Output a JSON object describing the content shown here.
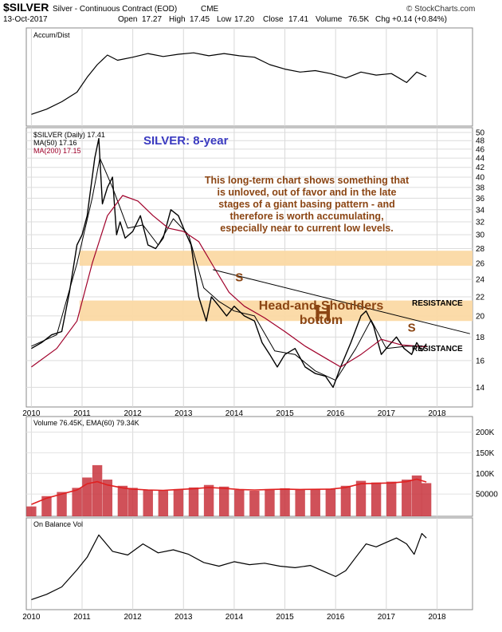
{
  "header": {
    "symbol": "$SILVER",
    "name": "Silver - Continuous Contract (EOD)",
    "exchange": "CME",
    "date": "13-Oct-2017",
    "open_label": "Open",
    "open": "17.27",
    "high_label": "High",
    "high": "17.45",
    "low_label": "Low",
    "low": "17.20",
    "close_label": "Close",
    "close": "17.41",
    "volume_label": "Volume",
    "volume": "76.5K",
    "chg_label": "Chg",
    "chg": "+0.14 (+0.84%)",
    "source": "© StockCharts.com"
  },
  "colors": {
    "price": "#000000",
    "ma50": "#000000",
    "ma200": "#a0002a",
    "volume_bar": "#c8323c",
    "volume_ema": "#e02020",
    "resistance_band": "#fbd9a4",
    "annotation": "#8b4513",
    "title": "#3a3ac0"
  },
  "chart_data": [
    {
      "type": "line",
      "panel": "accum-dist",
      "title": "Accum/Dist",
      "x": [
        2010.0,
        2010.3,
        2010.6,
        2010.9,
        2011.1,
        2011.3,
        2011.5,
        2011.7,
        2012.0,
        2012.3,
        2012.6,
        2012.9,
        2013.2,
        2013.5,
        2013.8,
        2014.1,
        2014.4,
        2014.7,
        2015.0,
        2015.3,
        2015.6,
        2015.9,
        2016.2,
        2016.5,
        2016.8,
        2017.1,
        2017.4,
        2017.6,
        2017.79
      ],
      "values": [
        0.05,
        0.12,
        0.22,
        0.35,
        0.55,
        0.72,
        0.85,
        0.78,
        0.82,
        0.87,
        0.83,
        0.86,
        0.88,
        0.84,
        0.87,
        0.84,
        0.82,
        0.72,
        0.66,
        0.62,
        0.64,
        0.6,
        0.54,
        0.62,
        0.58,
        0.6,
        0.48,
        0.62,
        0.56
      ]
    },
    {
      "type": "line",
      "panel": "price",
      "title": "SILVER: 8-year",
      "legend": [
        "$SILVER (Daily) 17.41",
        "MA(50) 17.16",
        "MA(200) 17.15"
      ],
      "ylim": [
        13,
        50
      ],
      "y_ticks": [
        14,
        16,
        18,
        20,
        22,
        24,
        26,
        28,
        30,
        32,
        34,
        36,
        38,
        40,
        42,
        44,
        46,
        48,
        50
      ],
      "x_ticks": [
        "2010",
        "2011",
        "2012",
        "2013",
        "2014",
        "2015",
        "2016",
        "2017",
        "2018"
      ],
      "series": [
        {
          "name": "$SILVER (Daily)",
          "x": [
            2010.0,
            2010.2,
            2010.4,
            2010.6,
            2010.75,
            2010.9,
            2011.0,
            2011.1,
            2011.25,
            2011.33,
            2011.4,
            2011.5,
            2011.6,
            2011.68,
            2011.75,
            2011.85,
            2012.0,
            2012.15,
            2012.3,
            2012.45,
            2012.6,
            2012.75,
            2012.9,
            2013.0,
            2013.15,
            2013.3,
            2013.45,
            2013.55,
            2013.7,
            2013.85,
            2014.0,
            2014.2,
            2014.4,
            2014.55,
            2014.7,
            2014.85,
            2015.0,
            2015.2,
            2015.4,
            2015.6,
            2015.8,
            2015.95,
            2016.1,
            2016.3,
            2016.5,
            2016.6,
            2016.75,
            2016.9,
            2017.0,
            2017.2,
            2017.35,
            2017.5,
            2017.6,
            2017.7,
            2017.79
          ],
          "values": [
            17.0,
            17.5,
            18.2,
            18.5,
            22.5,
            28.5,
            30.0,
            33.0,
            44.0,
            48.5,
            35.0,
            38.0,
            40.0,
            30.0,
            32.0,
            29.5,
            30.5,
            33.0,
            28.5,
            28.0,
            29.5,
            34.0,
            33.0,
            31.0,
            28.5,
            22.0,
            19.5,
            22.0,
            21.0,
            20.0,
            21.0,
            20.0,
            19.5,
            17.5,
            16.5,
            15.5,
            16.5,
            17.0,
            15.5,
            15.0,
            14.8,
            14.0,
            15.5,
            17.5,
            20.0,
            20.5,
            19.0,
            16.5,
            17.0,
            18.0,
            17.0,
            16.5,
            17.5,
            16.8,
            17.41
          ]
        },
        {
          "name": "MA(50)",
          "x": [
            2010.0,
            2010.5,
            2010.9,
            2011.2,
            2011.35,
            2011.6,
            2011.9,
            2012.2,
            2012.5,
            2012.8,
            2013.1,
            2013.4,
            2013.7,
            2014.0,
            2014.4,
            2014.8,
            2015.2,
            2015.6,
            2016.0,
            2016.4,
            2016.7,
            2017.0,
            2017.4,
            2017.79
          ],
          "values": [
            17.2,
            18.2,
            26.0,
            36.0,
            44.0,
            38.0,
            31.0,
            31.5,
            28.5,
            32.5,
            30.0,
            23.0,
            21.5,
            20.5,
            20.0,
            16.8,
            16.5,
            15.2,
            14.5,
            17.0,
            19.6,
            17.0,
            17.2,
            17.16
          ]
        },
        {
          "name": "MA(200)",
          "x": [
            2010.0,
            2010.5,
            2010.9,
            2011.2,
            2011.5,
            2011.8,
            2012.1,
            2012.4,
            2012.7,
            2013.0,
            2013.3,
            2013.6,
            2013.9,
            2014.2,
            2014.6,
            2015.0,
            2015.4,
            2015.8,
            2016.1,
            2016.5,
            2016.9,
            2017.3,
            2017.79
          ],
          "values": [
            15.5,
            17.0,
            19.5,
            26.0,
            33.0,
            36.5,
            35.5,
            33.0,
            31.0,
            30.5,
            29.0,
            25.5,
            22.5,
            21.0,
            19.8,
            18.5,
            17.2,
            16.2,
            15.5,
            16.5,
            17.8,
            17.3,
            17.15
          ]
        }
      ],
      "annotations": [
        {
          "text": "This long-term chart shows something that is unloved, out of favor and in the late stages of a giant basing pattern - and therefore is worth accumulating, especially near to current low levels."
        },
        {
          "text": "Head-and-Shoulders bottom"
        },
        {
          "text": "RESISTANCE",
          "y": 26.5
        },
        {
          "text": "RESISTANCE",
          "y": 20.5
        },
        {
          "text": "S",
          "x": 2014.1,
          "y": 23.8
        },
        {
          "text": "H",
          "x": 2015.75,
          "y": 19.5
        },
        {
          "text": "S",
          "x": 2017.5,
          "y": 18.5
        }
      ],
      "bands": [
        {
          "label": "RESISTANCE",
          "from": 25.7,
          "to": 27.7
        },
        {
          "label": "RESISTANCE",
          "from": 19.5,
          "to": 21.6
        }
      ],
      "trendline": {
        "x": [
          2013.58,
          2018.65
        ],
        "y": [
          25.2,
          18.3
        ]
      }
    },
    {
      "type": "bar",
      "panel": "volume",
      "legend": "Volume 76.45K, EMA(60) 79.34K",
      "y_ticks": [
        "50000",
        "100K",
        "150K",
        "200K"
      ],
      "ylim": [
        0,
        230000
      ],
      "x": [
        2010.0,
        2010.3,
        2010.6,
        2010.9,
        2011.1,
        2011.3,
        2011.5,
        2011.8,
        2012.0,
        2012.3,
        2012.6,
        2012.9,
        2013.2,
        2013.5,
        2013.8,
        2014.1,
        2014.4,
        2014.7,
        2015.0,
        2015.3,
        2015.6,
        2015.9,
        2016.2,
        2016.5,
        2016.8,
        2017.1,
        2017.4,
        2017.6,
        2017.79
      ],
      "values": [
        20000,
        45000,
        55000,
        65000,
        90000,
        120000,
        85000,
        70000,
        65000,
        60000,
        58000,
        62000,
        66000,
        72000,
        68000,
        60000,
        58000,
        62000,
        64000,
        60000,
        62000,
        63000,
        70000,
        82000,
        78000,
        80000,
        85000,
        95000,
        76450
      ],
      "ema": [
        25000,
        40000,
        50000,
        60000,
        75000,
        80000,
        72000,
        65000,
        62000,
        60000,
        59000,
        61000,
        63000,
        66000,
        64000,
        61000,
        60000,
        61000,
        62000,
        61000,
        61500,
        62000,
        66000,
        75000,
        76000,
        77000,
        80000,
        86000,
        79340
      ]
    },
    {
      "type": "line",
      "panel": "obv",
      "title": "On Balance Vol",
      "x_ticks": [
        "2010",
        "2011",
        "2012",
        "2013",
        "2014",
        "2015",
        "2016",
        "2017",
        "2018"
      ],
      "x": [
        2010.0,
        2010.3,
        2010.6,
        2010.9,
        2011.1,
        2011.33,
        2011.6,
        2011.9,
        2012.2,
        2012.5,
        2012.8,
        2013.1,
        2013.4,
        2013.7,
        2014.0,
        2014.3,
        2014.6,
        2014.9,
        2015.2,
        2015.5,
        2015.8,
        2016.0,
        2016.2,
        2016.4,
        2016.6,
        2016.8,
        2017.0,
        2017.2,
        2017.4,
        2017.55,
        2017.7,
        2017.79
      ],
      "values": [
        0.05,
        0.12,
        0.22,
        0.45,
        0.62,
        0.92,
        0.7,
        0.65,
        0.8,
        0.68,
        0.72,
        0.66,
        0.55,
        0.5,
        0.56,
        0.52,
        0.54,
        0.5,
        0.48,
        0.51,
        0.42,
        0.36,
        0.44,
        0.62,
        0.8,
        0.76,
        0.82,
        0.88,
        0.8,
        0.66,
        0.94,
        0.88
      ]
    }
  ]
}
